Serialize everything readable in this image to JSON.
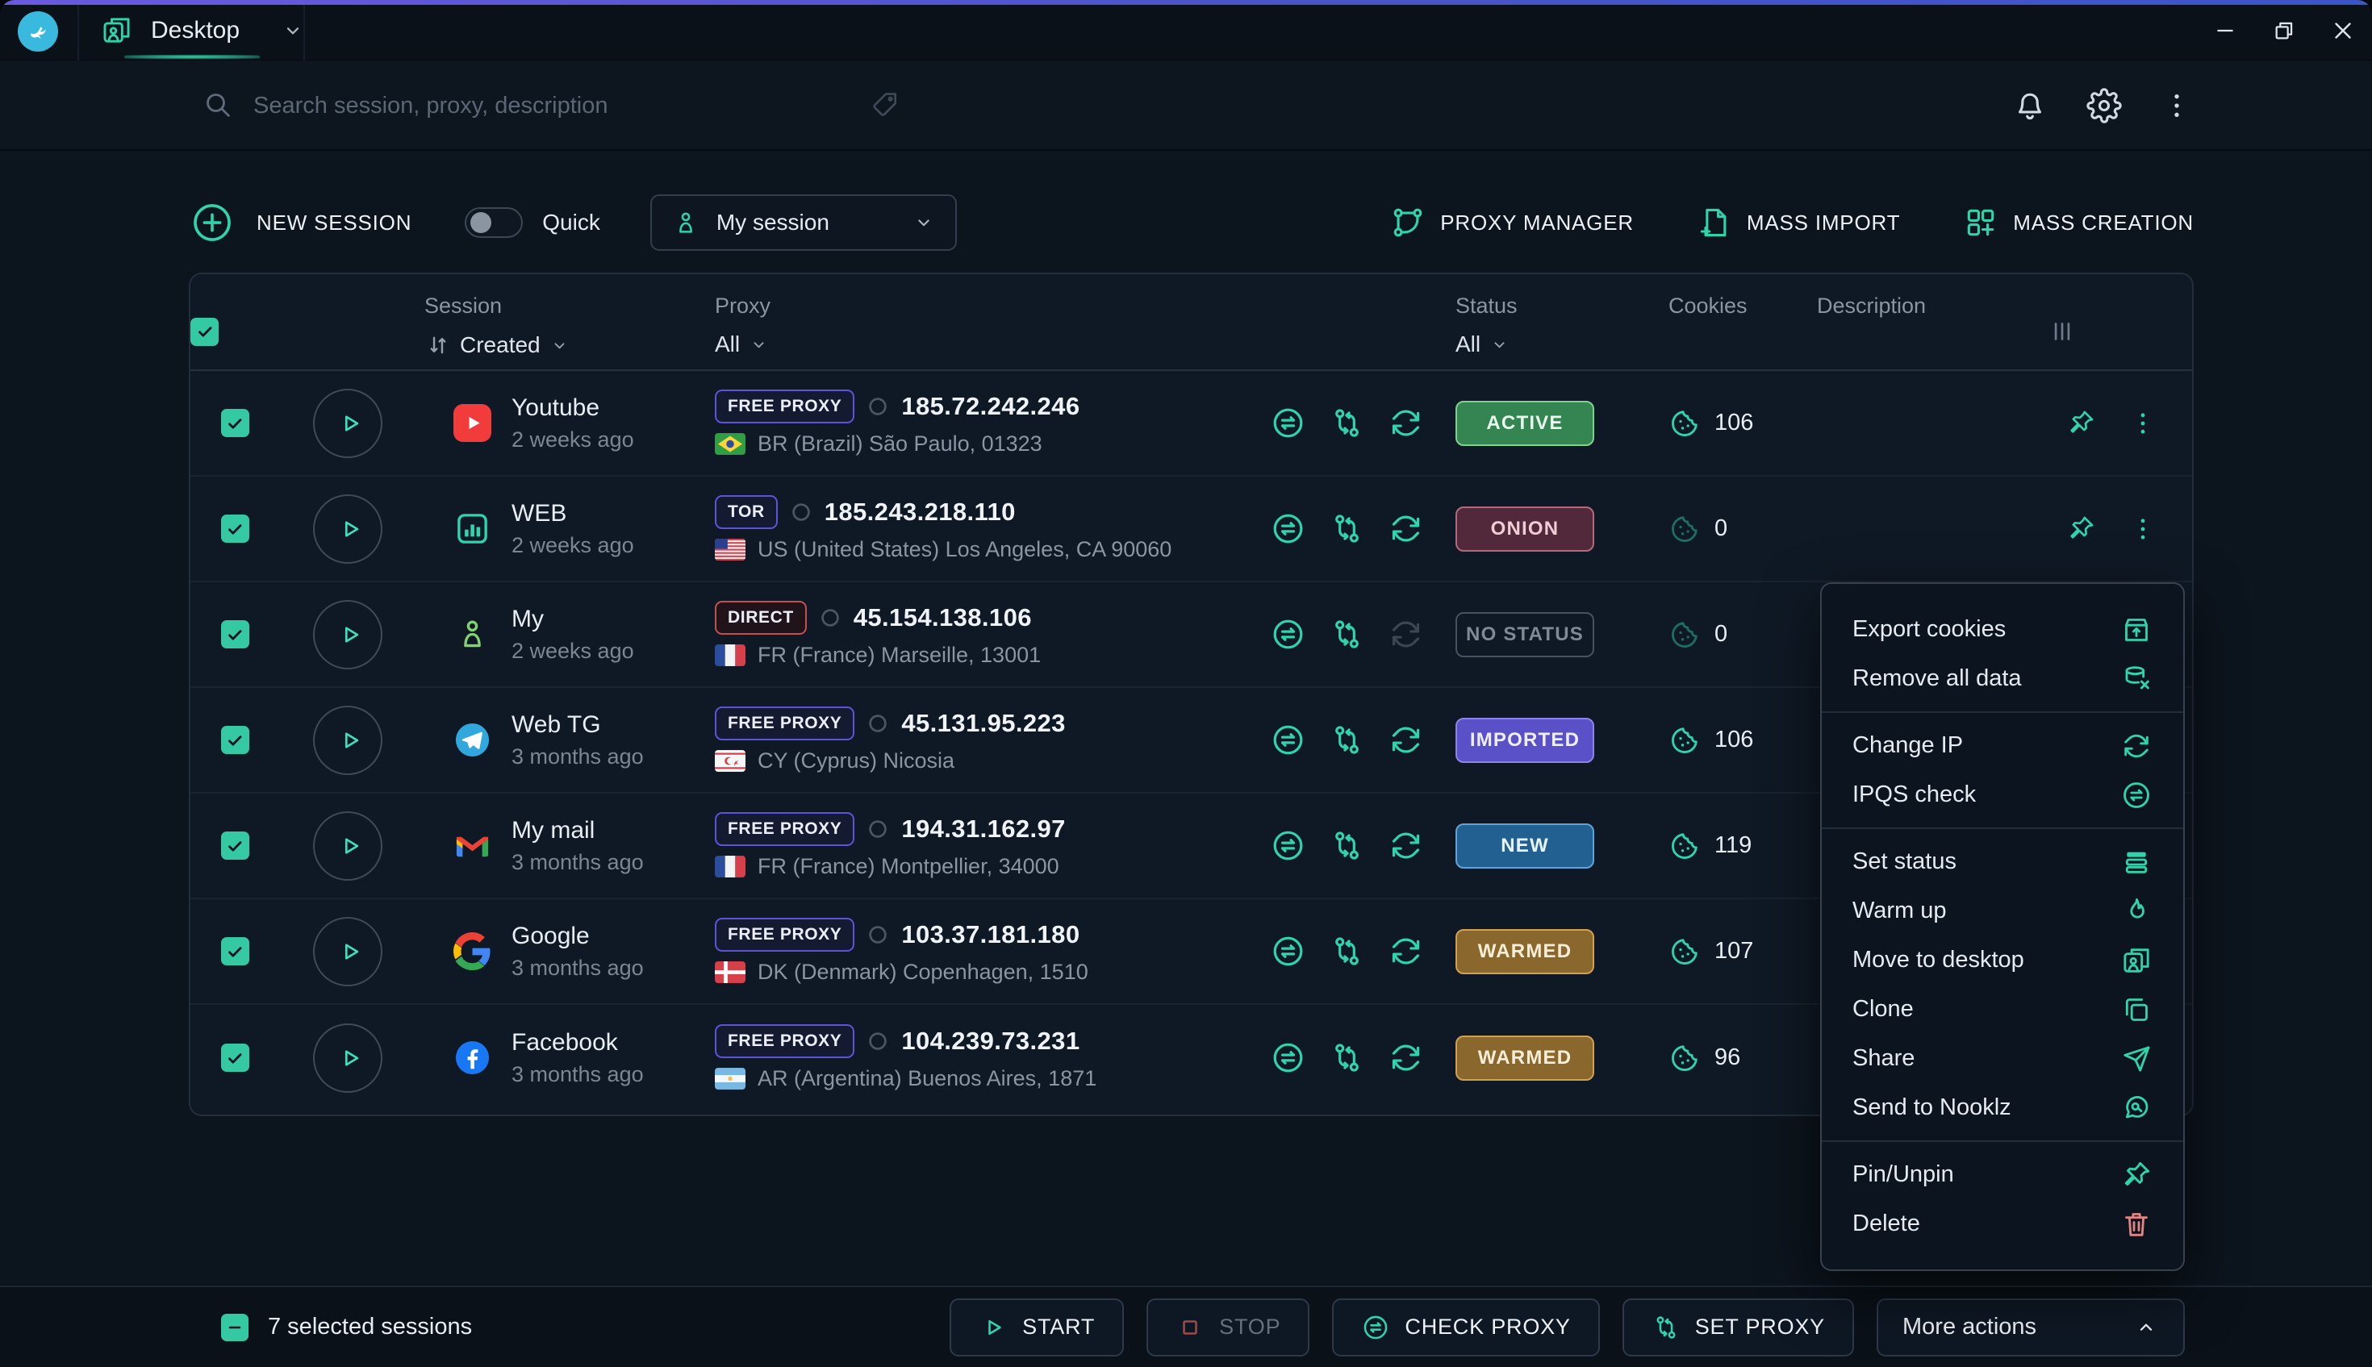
{
  "titlebar": {
    "tab_label": "Desktop"
  },
  "search": {
    "placeholder": "Search session, proxy, description"
  },
  "toolbar": {
    "new_session": "NEW SESSION",
    "quick": "Quick",
    "workspace": "My session",
    "proxy_manager": "PROXY MANAGER",
    "mass_import": "MASS IMPORT",
    "mass_creation": "MASS CREATION"
  },
  "table": {
    "headers": {
      "session": "Session",
      "created_sort": "Created",
      "proxy": "Proxy",
      "proxy_filter": "All",
      "status": "Status",
      "status_filter": "All",
      "cookies": "Cookies",
      "description": "Description"
    },
    "rows": [
      {
        "name": "Youtube",
        "age": "2 weeks ago",
        "icon": "youtube",
        "proxy_type": "FREE PROXY",
        "proxy_style": "free",
        "ip": "185.72.242.246",
        "flag": "br",
        "location": "BR (Brazil) São Paulo, 01323",
        "status": "ACTIVE",
        "status_style": "active",
        "cookies": "106",
        "cookies_dim": false,
        "refresh_dim": false,
        "end_icons": true
      },
      {
        "name": "WEB",
        "age": "2 weeks ago",
        "icon": "web",
        "proxy_type": "TOR",
        "proxy_style": "tor",
        "ip": "185.243.218.110",
        "flag": "us",
        "location": "US (United States) Los Angeles, CA 90060",
        "status": "ONION",
        "status_style": "onion",
        "cookies": "0",
        "cookies_dim": true,
        "refresh_dim": false,
        "end_icons": true
      },
      {
        "name": "My",
        "age": "2 weeks ago",
        "icon": "person",
        "proxy_type": "DIRECT",
        "proxy_style": "direct",
        "ip": "45.154.138.106",
        "flag": "fr",
        "location": "FR (France) Marseille, 13001",
        "status": "NO STATUS",
        "status_style": "none",
        "cookies": "0",
        "cookies_dim": true,
        "refresh_dim": true,
        "end_icons": false
      },
      {
        "name": "Web TG",
        "age": "3 months ago",
        "icon": "telegram",
        "proxy_type": "FREE PROXY",
        "proxy_style": "free",
        "ip": "45.131.95.223",
        "flag": "cy",
        "location": "CY (Cyprus) Nicosia",
        "status": "IMPORTED",
        "status_style": "imported",
        "cookies": "106",
        "cookies_dim": false,
        "refresh_dim": false,
        "end_icons": false
      },
      {
        "name": "My mail",
        "age": "3 months ago",
        "icon": "gmail",
        "proxy_type": "FREE PROXY",
        "proxy_style": "free",
        "ip": "194.31.162.97",
        "flag": "fr",
        "location": "FR (France) Montpellier, 34000",
        "status": "NEW",
        "status_style": "new",
        "cookies": "119",
        "cookies_dim": false,
        "refresh_dim": false,
        "end_icons": false
      },
      {
        "name": "Google",
        "age": "3 months ago",
        "icon": "google",
        "proxy_type": "FREE PROXY",
        "proxy_style": "free",
        "ip": "103.37.181.180",
        "flag": "dk",
        "location": "DK (Denmark) Copenhagen, 1510",
        "status": "WARMED",
        "status_style": "warmed",
        "cookies": "107",
        "cookies_dim": false,
        "refresh_dim": false,
        "end_icons": false
      },
      {
        "name": "Facebook",
        "age": "3 months ago",
        "icon": "facebook",
        "proxy_type": "FREE PROXY",
        "proxy_style": "free",
        "ip": "104.239.73.231",
        "flag": "ar",
        "location": "AR (Argentina) Buenos Aires, 1871",
        "status": "WARMED",
        "status_style": "warmed",
        "cookies": "96",
        "cookies_dim": false,
        "refresh_dim": false,
        "end_icons": false
      }
    ]
  },
  "context_menu": {
    "items": [
      {
        "label": "Export cookies",
        "icon": "boxup",
        "divider_after": false,
        "danger": false
      },
      {
        "label": "Remove all data",
        "icon": "dbx",
        "divider_after": true,
        "danger": false
      },
      {
        "label": "Change IP",
        "icon": "refresh",
        "divider_after": false,
        "danger": false
      },
      {
        "label": "IPQS check",
        "icon": "swapc",
        "divider_after": true,
        "danger": false
      },
      {
        "label": "Set status",
        "icon": "bars",
        "divider_after": false,
        "danger": false
      },
      {
        "label": "Warm up",
        "icon": "flame",
        "divider_after": false,
        "danger": false
      },
      {
        "label": "Move to desktop",
        "icon": "profiles",
        "divider_after": false,
        "danger": false
      },
      {
        "label": "Clone",
        "icon": "clone",
        "divider_after": false,
        "danger": false
      },
      {
        "label": "Share",
        "icon": "send",
        "divider_after": false,
        "danger": false
      },
      {
        "label": "Send to Nooklz",
        "icon": "nooklz",
        "divider_after": true,
        "danger": false
      },
      {
        "label": "Pin/Unpin",
        "icon": "pin",
        "divider_after": false,
        "danger": false
      },
      {
        "label": "Delete",
        "icon": "trash",
        "divider_after": false,
        "danger": true
      }
    ]
  },
  "footer": {
    "selected": "7 selected sessions",
    "buttons": [
      {
        "label": "START",
        "icon": "play",
        "disabled": false
      },
      {
        "label": "STOP",
        "icon": "stop",
        "disabled": true
      },
      {
        "label": "CHECK PROXY",
        "icon": "swapc",
        "disabled": false
      },
      {
        "label": "SET PROXY",
        "icon": "branch",
        "disabled": false
      }
    ],
    "more_actions": "More actions"
  },
  "colors": {
    "accent_teal": "#2fd4ac",
    "top_border": "#5b57d6",
    "status_active": "#358552",
    "status_onion_border": "#b4687c",
    "status_imported": "#5a50c8",
    "status_new": "#226092",
    "status_warmed": "#8a672c",
    "proxy_badge_border": "#5a54d8",
    "direct_border": "#c25050",
    "danger": "#e08484",
    "logo_bg": "#39b9dd"
  }
}
